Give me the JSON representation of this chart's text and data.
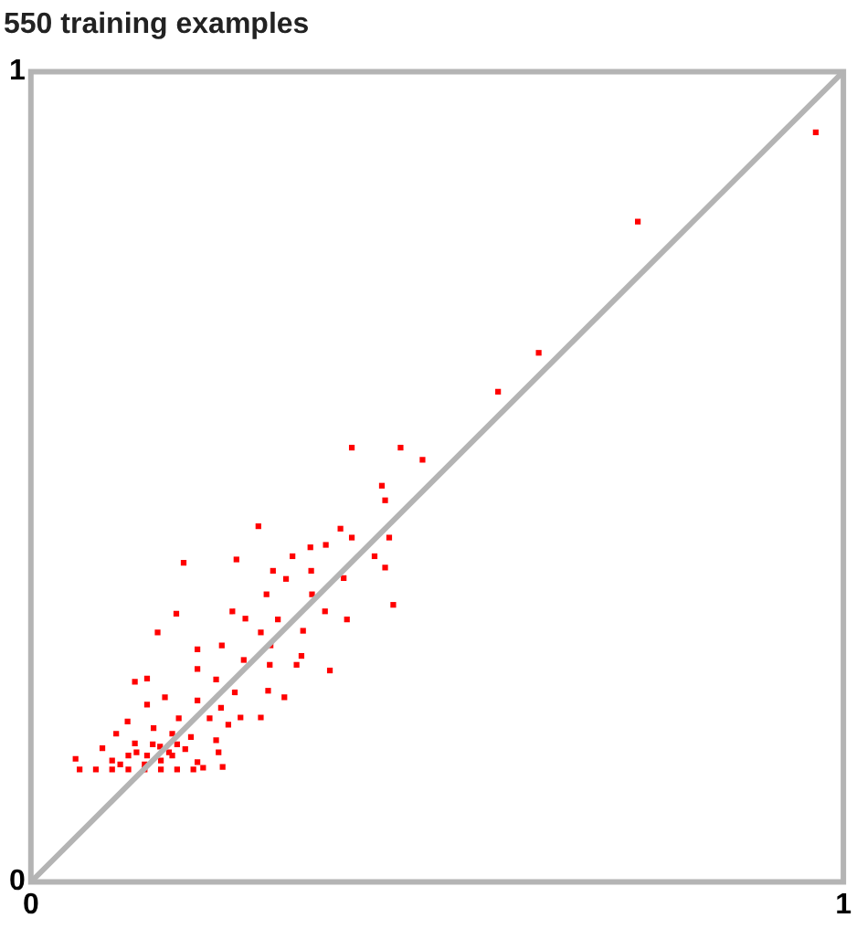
{
  "chart_data": {
    "type": "scatter",
    "title": "550 training examples",
    "xlim": [
      0,
      1
    ],
    "ylim": [
      0,
      1
    ],
    "xticks": [
      0,
      1
    ],
    "yticks": [
      0,
      1
    ],
    "series": [
      {
        "type": "line",
        "color": "#b4b4b4",
        "marker": "none",
        "x": [
          0,
          1
        ],
        "values": [
          0,
          1
        ]
      },
      {
        "type": "scatter",
        "color": "#ff0000",
        "marker": "square",
        "x": [
          0.966,
          0.747,
          0.625,
          0.575,
          0.395,
          0.455,
          0.482,
          0.432,
          0.436,
          0.28,
          0.381,
          0.395,
          0.441,
          0.188,
          0.253,
          0.322,
          0.344,
          0.363,
          0.423,
          0.436,
          0.298,
          0.345,
          0.385,
          0.314,
          0.446,
          0.179,
          0.248,
          0.264,
          0.29,
          0.346,
          0.362,
          0.389,
          0.156,
          0.304,
          0.283,
          0.335,
          0.295,
          0.205,
          0.235,
          0.333,
          0.262,
          0.205,
          0.327,
          0.368,
          0.294,
          0.143,
          0.128,
          0.228,
          0.251,
          0.292,
          0.312,
          0.165,
          0.143,
          0.205,
          0.234,
          0.258,
          0.283,
          0.119,
          0.182,
          0.22,
          0.243,
          0.105,
          0.151,
          0.174,
          0.197,
          0.228,
          0.088,
          0.128,
          0.159,
          0.19,
          0.231,
          0.055,
          0.12,
          0.143,
          0.174,
          0.205,
          0.236,
          0.212,
          0.06,
          0.08,
          0.1,
          0.12,
          0.14,
          0.16,
          0.18,
          0.2,
          0.1,
          0.13,
          0.15,
          0.16,
          0.17,
          0.18,
          0.14,
          0.11
        ],
        "values": [
          0.925,
          0.815,
          0.653,
          0.605,
          0.536,
          0.536,
          0.521,
          0.489,
          0.471,
          0.439,
          0.436,
          0.425,
          0.425,
          0.394,
          0.398,
          0.402,
          0.413,
          0.416,
          0.402,
          0.388,
          0.384,
          0.384,
          0.375,
          0.374,
          0.342,
          0.331,
          0.334,
          0.325,
          0.355,
          0.355,
          0.334,
          0.324,
          0.308,
          0.324,
          0.308,
          0.31,
          0.292,
          0.287,
          0.292,
          0.279,
          0.274,
          0.263,
          0.268,
          0.261,
          0.268,
          0.251,
          0.247,
          0.25,
          0.234,
          0.236,
          0.228,
          0.228,
          0.219,
          0.224,
          0.215,
          0.203,
          0.203,
          0.198,
          0.202,
          0.202,
          0.194,
          0.183,
          0.19,
          0.183,
          0.179,
          0.175,
          0.165,
          0.171,
          0.167,
          0.164,
          0.16,
          0.152,
          0.156,
          0.156,
          0.156,
          0.148,
          0.142,
          0.141,
          0.139,
          0.139,
          0.139,
          0.139,
          0.139,
          0.139,
          0.139,
          0.139,
          0.15,
          0.16,
          0.17,
          0.15,
          0.16,
          0.17,
          0.145,
          0.145
        ]
      }
    ]
  }
}
